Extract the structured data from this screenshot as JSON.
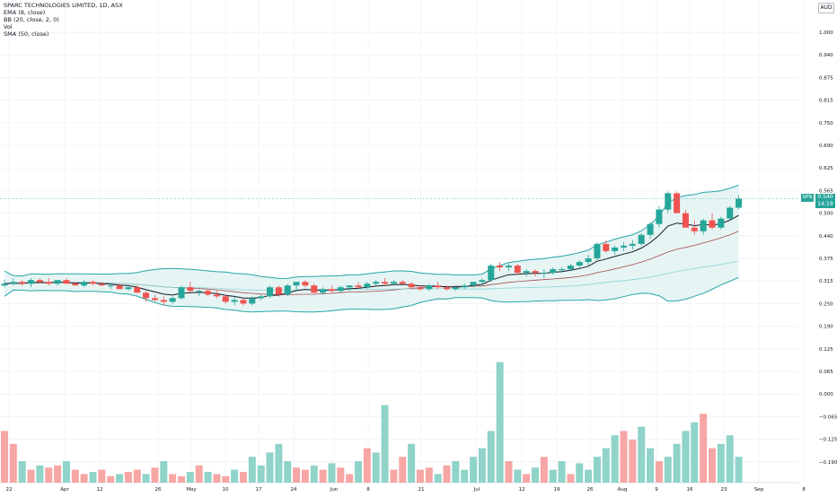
{
  "header": {
    "title": "SPARC TECHNOLOGIES LIMITED, 1D, ASX",
    "indicators": [
      "EMA (8, close)",
      "BB (20, close, 2, 0)",
      "Vol",
      "SMA (50, close)"
    ],
    "currency": "AUD"
  },
  "badges": {
    "ticker": "SPN",
    "price": "0.540",
    "countdown": "14:19"
  },
  "colors": {
    "up": "#26a69a",
    "down": "#ef5350",
    "up_volume": "#8fd3c9",
    "down_volume": "#f6a6a4",
    "bb": "#26a6a6",
    "bb_fill": "#e6f4f4",
    "ema": "#131722",
    "bb_basis": "#a24a4a",
    "sma": "#8ad6d6"
  },
  "chart_data": {
    "type": "candlestick",
    "y_axis_ticks": [
      "1.000",
      "0.940",
      "0.875",
      "0.815",
      "0.750",
      "0.690",
      "0.625",
      "0.565",
      "0.500",
      "0.440",
      "0.375",
      "0.315",
      "0.250",
      "0.190",
      "0.125",
      "0.065",
      "0.000",
      "−0.065",
      "−0.125",
      "−0.190"
    ],
    "x_axis_ticks": [
      "22",
      "Apr",
      "12",
      "26",
      "May",
      "10",
      "17",
      "24",
      "Jun",
      "8",
      "21",
      "Jul",
      "12",
      "19",
      "26",
      "Aug",
      "9",
      "16",
      "23",
      "Sep",
      "8"
    ],
    "current_price": 0.54,
    "candles_ohlc": [
      [
        0.3,
        0.315,
        0.295,
        0.305
      ],
      [
        0.305,
        0.32,
        0.3,
        0.31
      ],
      [
        0.31,
        0.315,
        0.3,
        0.305
      ],
      [
        0.305,
        0.32,
        0.295,
        0.315
      ],
      [
        0.315,
        0.32,
        0.305,
        0.31
      ],
      [
        0.31,
        0.32,
        0.3,
        0.305
      ],
      [
        0.305,
        0.315,
        0.3,
        0.315
      ],
      [
        0.315,
        0.32,
        0.305,
        0.305
      ],
      [
        0.305,
        0.31,
        0.3,
        0.3
      ],
      [
        0.3,
        0.315,
        0.295,
        0.31
      ],
      [
        0.31,
        0.315,
        0.3,
        0.305
      ],
      [
        0.305,
        0.31,
        0.3,
        0.3
      ],
      [
        0.3,
        0.305,
        0.29,
        0.3
      ],
      [
        0.3,
        0.305,
        0.29,
        0.29
      ],
      [
        0.29,
        0.3,
        0.285,
        0.295
      ],
      [
        0.295,
        0.3,
        0.28,
        0.28
      ],
      [
        0.28,
        0.285,
        0.255,
        0.265
      ],
      [
        0.265,
        0.275,
        0.255,
        0.26
      ],
      [
        0.26,
        0.27,
        0.245,
        0.255
      ],
      [
        0.255,
        0.27,
        0.25,
        0.265
      ],
      [
        0.265,
        0.3,
        0.26,
        0.295
      ],
      [
        0.295,
        0.31,
        0.28,
        0.285
      ],
      [
        0.285,
        0.29,
        0.27,
        0.285
      ],
      [
        0.285,
        0.29,
        0.27,
        0.275
      ],
      [
        0.275,
        0.285,
        0.265,
        0.27
      ],
      [
        0.27,
        0.275,
        0.25,
        0.255
      ],
      [
        0.255,
        0.27,
        0.245,
        0.26
      ],
      [
        0.26,
        0.265,
        0.245,
        0.25
      ],
      [
        0.25,
        0.27,
        0.245,
        0.265
      ],
      [
        0.265,
        0.275,
        0.26,
        0.27
      ],
      [
        0.27,
        0.3,
        0.265,
        0.295
      ],
      [
        0.295,
        0.3,
        0.27,
        0.275
      ],
      [
        0.275,
        0.305,
        0.27,
        0.3
      ],
      [
        0.3,
        0.31,
        0.285,
        0.31
      ],
      [
        0.31,
        0.315,
        0.295,
        0.3
      ],
      [
        0.3,
        0.305,
        0.28,
        0.28
      ],
      [
        0.28,
        0.295,
        0.275,
        0.29
      ],
      [
        0.29,
        0.3,
        0.28,
        0.285
      ],
      [
        0.285,
        0.3,
        0.28,
        0.295
      ],
      [
        0.295,
        0.3,
        0.285,
        0.3
      ],
      [
        0.3,
        0.31,
        0.29,
        0.295
      ],
      [
        0.295,
        0.31,
        0.29,
        0.305
      ],
      [
        0.305,
        0.315,
        0.3,
        0.31
      ],
      [
        0.31,
        0.32,
        0.3,
        0.305
      ],
      [
        0.305,
        0.315,
        0.3,
        0.31
      ],
      [
        0.31,
        0.315,
        0.3,
        0.305
      ],
      [
        0.305,
        0.31,
        0.29,
        0.295
      ],
      [
        0.295,
        0.3,
        0.285,
        0.29
      ],
      [
        0.29,
        0.305,
        0.285,
        0.3
      ],
      [
        0.3,
        0.31,
        0.29,
        0.295
      ],
      [
        0.295,
        0.3,
        0.285,
        0.29
      ],
      [
        0.29,
        0.3,
        0.285,
        0.295
      ],
      [
        0.295,
        0.305,
        0.29,
        0.3
      ],
      [
        0.3,
        0.31,
        0.295,
        0.31
      ],
      [
        0.31,
        0.32,
        0.3,
        0.315
      ],
      [
        0.315,
        0.36,
        0.31,
        0.355
      ],
      [
        0.355,
        0.365,
        0.34,
        0.35
      ],
      [
        0.35,
        0.36,
        0.34,
        0.355
      ],
      [
        0.355,
        0.36,
        0.33,
        0.335
      ],
      [
        0.335,
        0.345,
        0.325,
        0.34
      ],
      [
        0.34,
        0.345,
        0.325,
        0.335
      ],
      [
        0.335,
        0.345,
        0.32,
        0.335
      ],
      [
        0.335,
        0.35,
        0.33,
        0.345
      ],
      [
        0.345,
        0.35,
        0.335,
        0.345
      ],
      [
        0.345,
        0.36,
        0.34,
        0.355
      ],
      [
        0.355,
        0.37,
        0.35,
        0.365
      ],
      [
        0.365,
        0.385,
        0.355,
        0.375
      ],
      [
        0.375,
        0.42,
        0.37,
        0.415
      ],
      [
        0.415,
        0.425,
        0.39,
        0.395
      ],
      [
        0.395,
        0.41,
        0.385,
        0.405
      ],
      [
        0.405,
        0.42,
        0.395,
        0.41
      ],
      [
        0.41,
        0.425,
        0.4,
        0.415
      ],
      [
        0.415,
        0.445,
        0.41,
        0.44
      ],
      [
        0.44,
        0.475,
        0.43,
        0.47
      ],
      [
        0.47,
        0.52,
        0.46,
        0.51
      ],
      [
        0.51,
        0.56,
        0.5,
        0.555
      ],
      [
        0.555,
        0.56,
        0.5,
        0.5
      ],
      [
        0.5,
        0.51,
        0.46,
        0.46
      ],
      [
        0.46,
        0.48,
        0.44,
        0.45
      ],
      [
        0.45,
        0.485,
        0.44,
        0.48
      ],
      [
        0.48,
        0.5,
        0.455,
        0.46
      ],
      [
        0.46,
        0.49,
        0.455,
        0.485
      ],
      [
        0.485,
        0.52,
        0.48,
        0.515
      ],
      [
        0.515,
        0.55,
        0.51,
        0.54
      ]
    ],
    "volume": [
      1.2,
      0.9,
      0.5,
      0.3,
      0.4,
      0.35,
      0.4,
      0.5,
      0.3,
      0.2,
      0.25,
      0.3,
      0.15,
      0.2,
      0.25,
      0.3,
      0.2,
      0.35,
      0.5,
      0.2,
      0.15,
      0.25,
      0.4,
      0.25,
      0.2,
      0.15,
      0.3,
      0.25,
      0.6,
      0.4,
      0.7,
      0.9,
      0.5,
      0.35,
      0.3,
      0.4,
      0.3,
      0.45,
      0.35,
      0.2,
      0.5,
      0.8,
      0.7,
      1.8,
      0.3,
      0.6,
      0.9,
      0.3,
      0.35,
      0.2,
      0.4,
      0.5,
      0.3,
      0.6,
      0.8,
      1.2,
      2.8,
      0.5,
      0.3,
      0.2,
      0.35,
      0.6,
      0.3,
      0.5,
      0.2,
      0.45,
      0.3,
      0.6,
      0.8,
      1.1,
      1.2,
      1.0,
      1.3,
      0.8,
      0.5,
      0.6,
      0.9,
      1.2,
      1.4,
      1.6,
      0.8,
      0.9,
      1.1,
      0.6
    ],
    "volume_up": [
      false,
      false,
      true,
      false,
      true,
      false,
      false,
      true,
      false,
      false,
      true,
      false,
      false,
      true,
      false,
      false,
      true,
      false,
      true,
      false,
      false,
      true,
      false,
      true,
      false,
      false,
      true,
      false,
      true,
      true,
      true,
      true,
      true,
      false,
      false,
      true,
      false,
      true,
      false,
      false,
      true,
      false,
      true,
      true,
      false,
      false,
      true,
      false,
      false,
      true,
      false,
      true,
      true,
      true,
      true,
      true,
      true,
      false,
      true,
      false,
      true,
      false,
      true,
      true,
      false,
      true,
      true,
      true,
      true,
      true,
      false,
      false,
      true,
      true,
      false,
      true,
      true,
      true,
      true,
      false,
      false,
      true,
      true,
      true
    ]
  }
}
